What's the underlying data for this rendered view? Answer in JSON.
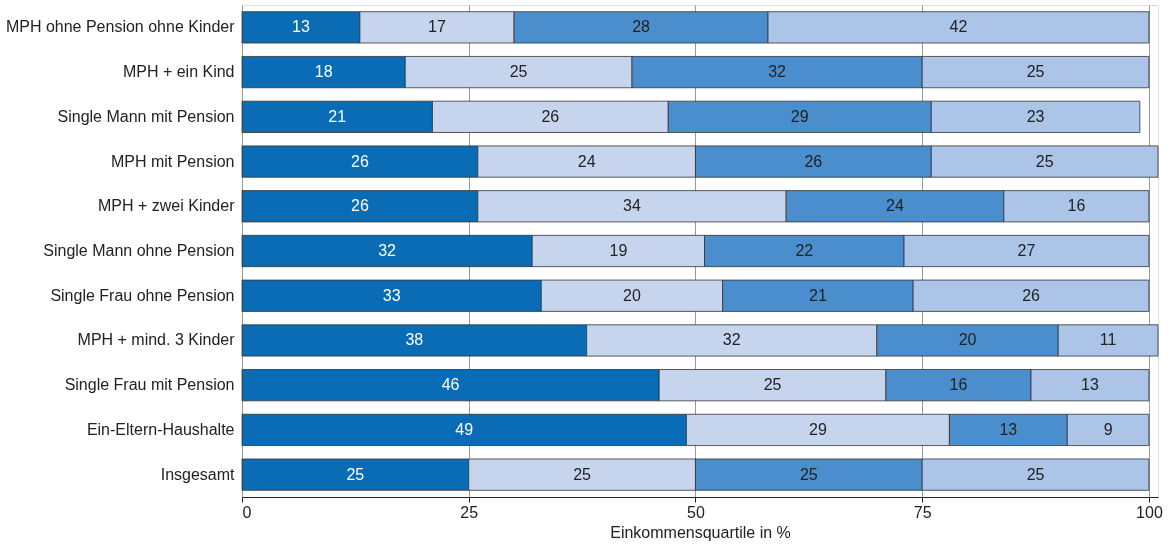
{
  "chart_data": {
    "type": "bar",
    "orientation": "horizontal",
    "stacked": true,
    "data_labels": true,
    "xlabel": "Einkommensquartile in %",
    "xlim": [
      0,
      101
    ],
    "xticks": [
      0,
      25,
      50,
      75,
      100
    ],
    "grid": "x",
    "categories": [
      "MPH ohne Pension ohne Kinder",
      "MPH + ein Kind",
      "Single Mann mit Pension",
      "MPH mit Pension",
      "MPH + zwei Kinder",
      "Single Mann ohne Pension",
      "Single Frau ohne Pension",
      "MPH + mind. 3 Kinder",
      "Single Frau mit Pension",
      "Ein-Eltern-Haushalte",
      "Insgesamt"
    ],
    "series": [
      {
        "color": "#0a6cb4",
        "values": [
          13,
          18,
          21,
          26,
          26,
          32,
          33,
          38,
          46,
          49,
          25
        ]
      },
      {
        "color": "#c6d4ee",
        "values": [
          17,
          25,
          26,
          24,
          34,
          19,
          20,
          32,
          25,
          29,
          25
        ]
      },
      {
        "color": "#4a8ecd",
        "values": [
          28,
          32,
          29,
          26,
          24,
          22,
          21,
          20,
          16,
          13,
          25
        ]
      },
      {
        "color": "#abc4e8",
        "values": [
          42,
          25,
          23,
          25,
          16,
          27,
          26,
          11,
          13,
          9,
          25
        ]
      }
    ]
  }
}
